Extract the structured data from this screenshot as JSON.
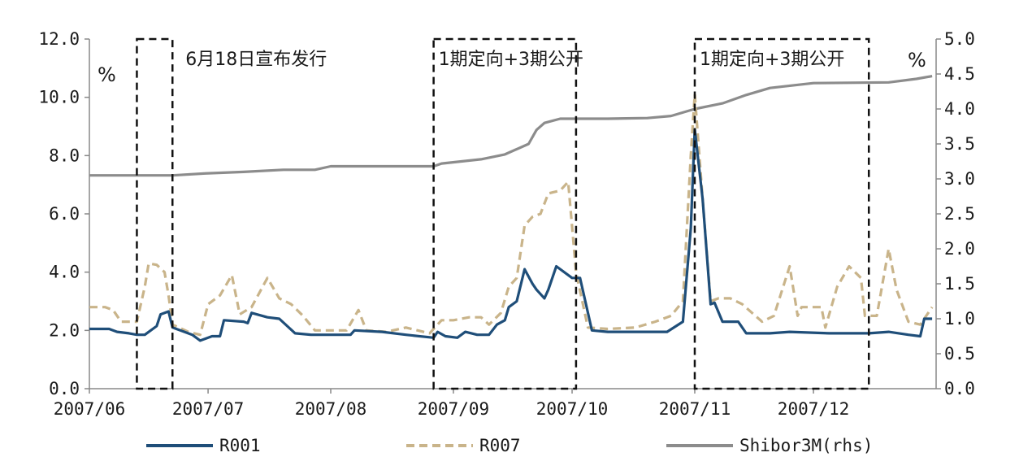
{
  "chart_data": {
    "type": "line",
    "title": "",
    "x_ticks": [
      "2007/06",
      "2007/07",
      "2007/08",
      "2007/09",
      "2007/10",
      "2007/11",
      "2007/12"
    ],
    "x_range": [
      "2007-06-01",
      "2008-01-01"
    ],
    "y_left": {
      "unit": "%",
      "ylim": [
        0,
        12
      ],
      "ticks": [
        "0.0",
        "2.0",
        "4.0",
        "6.0",
        "8.0",
        "10.0",
        "12.0"
      ]
    },
    "y_right": {
      "unit": "%",
      "ylim": [
        0,
        5
      ],
      "ticks": [
        "0.0",
        "0.5",
        "1.0",
        "1.5",
        "2.0",
        "2.5",
        "3.0",
        "3.5",
        "4.0",
        "4.5",
        "5.0"
      ]
    },
    "grid": false,
    "legend_position": "bottom",
    "colors": {
      "R001": "#1f4e79",
      "R007": "#c9b48a",
      "Shibor3M": "#8c8c8c"
    },
    "annotations": [
      {
        "text": "6月18日宣布发行",
        "box": [
          "2007-06-13",
          "2007-06-22"
        ]
      },
      {
        "text": "1期定向+3期公开",
        "box": [
          "2007-08-27",
          "2007-10-02"
        ]
      },
      {
        "text": "1期定向+3期公开",
        "box": [
          "2007-11-01",
          "2007-12-15"
        ]
      }
    ],
    "series": [
      {
        "name": "R001",
        "axis": "left",
        "style": "solid",
        "points": [
          [
            "2007-06-01",
            2.05
          ],
          [
            "2007-06-06",
            2.05
          ],
          [
            "2007-06-08",
            1.95
          ],
          [
            "2007-06-11",
            1.9
          ],
          [
            "2007-06-13",
            1.85
          ],
          [
            "2007-06-15",
            1.85
          ],
          [
            "2007-06-18",
            2.15
          ],
          [
            "2007-06-19",
            2.55
          ],
          [
            "2007-06-21",
            2.65
          ],
          [
            "2007-06-22",
            2.1
          ],
          [
            "2007-06-25",
            1.95
          ],
          [
            "2007-06-27",
            1.85
          ],
          [
            "2007-06-29",
            1.65
          ],
          [
            "2007-07-02",
            1.8
          ],
          [
            "2007-07-04",
            1.8
          ],
          [
            "2007-07-05",
            2.35
          ],
          [
            "2007-07-10",
            2.3
          ],
          [
            "2007-07-11",
            2.25
          ],
          [
            "2007-07-12",
            2.6
          ],
          [
            "2007-07-16",
            2.45
          ],
          [
            "2007-07-19",
            2.4
          ],
          [
            "2007-07-23",
            1.9
          ],
          [
            "2007-07-27",
            1.85
          ],
          [
            "2007-08-06",
            1.85
          ],
          [
            "2007-08-07",
            2.0
          ],
          [
            "2007-08-14",
            1.95
          ],
          [
            "2007-08-20",
            1.85
          ],
          [
            "2007-08-27",
            1.75
          ],
          [
            "2007-08-28",
            1.95
          ],
          [
            "2007-08-30",
            1.8
          ],
          [
            "2007-09-02",
            1.75
          ],
          [
            "2007-09-04",
            1.95
          ],
          [
            "2007-09-07",
            1.85
          ],
          [
            "2007-09-10",
            1.85
          ],
          [
            "2007-09-12",
            2.2
          ],
          [
            "2007-09-14",
            2.35
          ],
          [
            "2007-09-15",
            2.8
          ],
          [
            "2007-09-17",
            3.0
          ],
          [
            "2007-09-19",
            4.1
          ],
          [
            "2007-09-21",
            3.6
          ],
          [
            "2007-09-22",
            3.4
          ],
          [
            "2007-09-24",
            3.1
          ],
          [
            "2007-09-25",
            3.4
          ],
          [
            "2007-09-27",
            4.2
          ],
          [
            "2007-10-01",
            3.8
          ],
          [
            "2007-10-03",
            3.8
          ],
          [
            "2007-10-06",
            2.0
          ],
          [
            "2007-10-10",
            1.95
          ],
          [
            "2007-10-20",
            1.95
          ],
          [
            "2007-10-25",
            1.95
          ],
          [
            "2007-10-29",
            2.3
          ],
          [
            "2007-10-31",
            5.5
          ],
          [
            "2007-11-01",
            8.9
          ],
          [
            "2007-11-03",
            6.5
          ],
          [
            "2007-11-05",
            2.9
          ],
          [
            "2007-11-06",
            2.95
          ],
          [
            "2007-11-08",
            2.3
          ],
          [
            "2007-11-10",
            2.3
          ],
          [
            "2007-11-12",
            2.3
          ],
          [
            "2007-11-14",
            1.9
          ],
          [
            "2007-11-20",
            1.9
          ],
          [
            "2007-11-25",
            1.95
          ],
          [
            "2007-12-05",
            1.9
          ],
          [
            "2007-12-15",
            1.9
          ],
          [
            "2007-12-20",
            1.95
          ],
          [
            "2007-12-25",
            1.85
          ],
          [
            "2007-12-28",
            1.8
          ],
          [
            "2007-12-29",
            2.4
          ],
          [
            "2007-12-31",
            2.4
          ]
        ]
      },
      {
        "name": "R007",
        "axis": "left",
        "style": "dashed",
        "points": [
          [
            "2007-06-01",
            2.8
          ],
          [
            "2007-06-05",
            2.8
          ],
          [
            "2007-06-07",
            2.7
          ],
          [
            "2007-06-09",
            2.3
          ],
          [
            "2007-06-13",
            2.3
          ],
          [
            "2007-06-15",
            3.5
          ],
          [
            "2007-06-16",
            4.3
          ],
          [
            "2007-06-18",
            4.25
          ],
          [
            "2007-06-20",
            4.0
          ],
          [
            "2007-06-21",
            3.2
          ],
          [
            "2007-06-22",
            2.2
          ],
          [
            "2007-06-26",
            1.95
          ],
          [
            "2007-06-29",
            1.85
          ],
          [
            "2007-07-01",
            2.9
          ],
          [
            "2007-07-04",
            3.2
          ],
          [
            "2007-07-07",
            3.9
          ],
          [
            "2007-07-09",
            2.55
          ],
          [
            "2007-07-12",
            2.8
          ],
          [
            "2007-07-16",
            3.8
          ],
          [
            "2007-07-19",
            3.1
          ],
          [
            "2007-07-22",
            2.9
          ],
          [
            "2007-07-25",
            2.5
          ],
          [
            "2007-07-28",
            2.0
          ],
          [
            "2007-08-05",
            2.0
          ],
          [
            "2007-08-08",
            2.7
          ],
          [
            "2007-08-10",
            2.0
          ],
          [
            "2007-08-15",
            1.95
          ],
          [
            "2007-08-20",
            2.1
          ],
          [
            "2007-08-26",
            1.9
          ],
          [
            "2007-08-29",
            2.35
          ],
          [
            "2007-09-01",
            2.35
          ],
          [
            "2007-09-05",
            2.45
          ],
          [
            "2007-09-08",
            2.45
          ],
          [
            "2007-09-10",
            2.2
          ],
          [
            "2007-09-13",
            2.6
          ],
          [
            "2007-09-15",
            3.5
          ],
          [
            "2007-09-17",
            3.8
          ],
          [
            "2007-09-19",
            5.6
          ],
          [
            "2007-09-21",
            5.9
          ],
          [
            "2007-09-23",
            6.0
          ],
          [
            "2007-09-25",
            6.7
          ],
          [
            "2007-09-28",
            6.8
          ],
          [
            "2007-09-30",
            7.1
          ],
          [
            "2007-10-02",
            4.0
          ],
          [
            "2007-10-05",
            2.1
          ],
          [
            "2007-10-10",
            2.05
          ],
          [
            "2007-10-17",
            2.1
          ],
          [
            "2007-10-22",
            2.3
          ],
          [
            "2007-10-26",
            2.5
          ],
          [
            "2007-10-29",
            3.0
          ],
          [
            "2007-10-31",
            8.0
          ],
          [
            "2007-11-01",
            10.1
          ],
          [
            "2007-11-03",
            6.5
          ],
          [
            "2007-11-05",
            3.0
          ],
          [
            "2007-11-07",
            3.1
          ],
          [
            "2007-11-10",
            3.1
          ],
          [
            "2007-11-13",
            2.9
          ],
          [
            "2007-11-18",
            2.3
          ],
          [
            "2007-11-21",
            2.5
          ],
          [
            "2007-11-25",
            4.2
          ],
          [
            "2007-11-27",
            2.5
          ],
          [
            "2007-11-28",
            2.8
          ],
          [
            "2007-12-03",
            2.8
          ],
          [
            "2007-12-04",
            2.1
          ],
          [
            "2007-12-07",
            3.5
          ],
          [
            "2007-12-10",
            4.2
          ],
          [
            "2007-12-13",
            3.8
          ],
          [
            "2007-12-14",
            2.5
          ],
          [
            "2007-12-17",
            2.5
          ],
          [
            "2007-12-20",
            4.8
          ],
          [
            "2007-12-22",
            3.4
          ],
          [
            "2007-12-25",
            2.3
          ],
          [
            "2007-12-28",
            2.2
          ],
          [
            "2007-12-31",
            2.8
          ]
        ]
      },
      {
        "name": "Shibor3M(rhs)",
        "axis": "right",
        "style": "solid",
        "points": [
          [
            "2007-06-01",
            3.05
          ],
          [
            "2007-06-22",
            3.05
          ],
          [
            "2007-07-01",
            3.08
          ],
          [
            "2007-07-10",
            3.1
          ],
          [
            "2007-07-20",
            3.13
          ],
          [
            "2007-07-28",
            3.13
          ],
          [
            "2007-08-01",
            3.18
          ],
          [
            "2007-08-15",
            3.18
          ],
          [
            "2007-08-27",
            3.18
          ],
          [
            "2007-08-29",
            3.22
          ],
          [
            "2007-09-08",
            3.28
          ],
          [
            "2007-09-14",
            3.35
          ],
          [
            "2007-09-20",
            3.5
          ],
          [
            "2007-09-22",
            3.7
          ],
          [
            "2007-09-24",
            3.8
          ],
          [
            "2007-09-28",
            3.86
          ],
          [
            "2007-10-10",
            3.86
          ],
          [
            "2007-10-20",
            3.87
          ],
          [
            "2007-10-26",
            3.9
          ],
          [
            "2007-11-01",
            4.0
          ],
          [
            "2007-11-08",
            4.08
          ],
          [
            "2007-11-14",
            4.2
          ],
          [
            "2007-11-20",
            4.3
          ],
          [
            "2007-12-01",
            4.37
          ],
          [
            "2007-12-20",
            4.38
          ],
          [
            "2007-12-27",
            4.43
          ],
          [
            "2007-12-31",
            4.47
          ]
        ]
      }
    ]
  }
}
